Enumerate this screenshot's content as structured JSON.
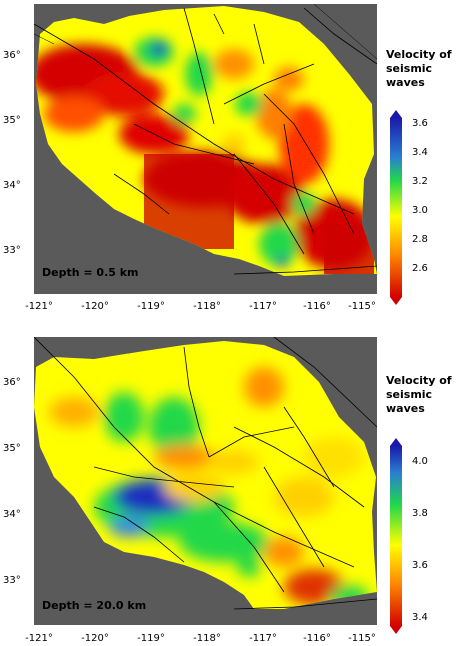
{
  "panels": [
    {
      "depth_label": "Depth = 0.5 km",
      "legend_title_line1": "Velocity of",
      "legend_title_line2": "seismic waves",
      "legend_ticks": [
        "3.6",
        "3.4",
        "3.2",
        "3.0",
        "2.8",
        "2.6"
      ],
      "lat_labels": [
        "36°",
        "35°",
        "34°",
        "33°"
      ],
      "lon_labels": [
        "-121°",
        "-120°",
        "-119°",
        "-118°",
        "-117°",
        "-116°",
        "-115°"
      ]
    },
    {
      "depth_label": "Depth = 20.0 km",
      "legend_title_line1": "Velocity of",
      "legend_title_line2": "seismic waves",
      "legend_ticks": [
        "4.0",
        "3.8",
        "3.6",
        "3.4"
      ],
      "lat_labels": [
        "36°",
        "35°",
        "34°",
        "33°"
      ],
      "lon_labels": [
        "-121°",
        "-120°",
        "-119°",
        "-118°",
        "-117°",
        "-116°",
        "-115°"
      ]
    }
  ],
  "colors": {
    "background": "#5a5a5a",
    "high": "#1a2fbf",
    "mid_high": "#22d84a",
    "mid": "#ffff00",
    "mid_low": "#ff9000",
    "low": "#d40000"
  }
}
